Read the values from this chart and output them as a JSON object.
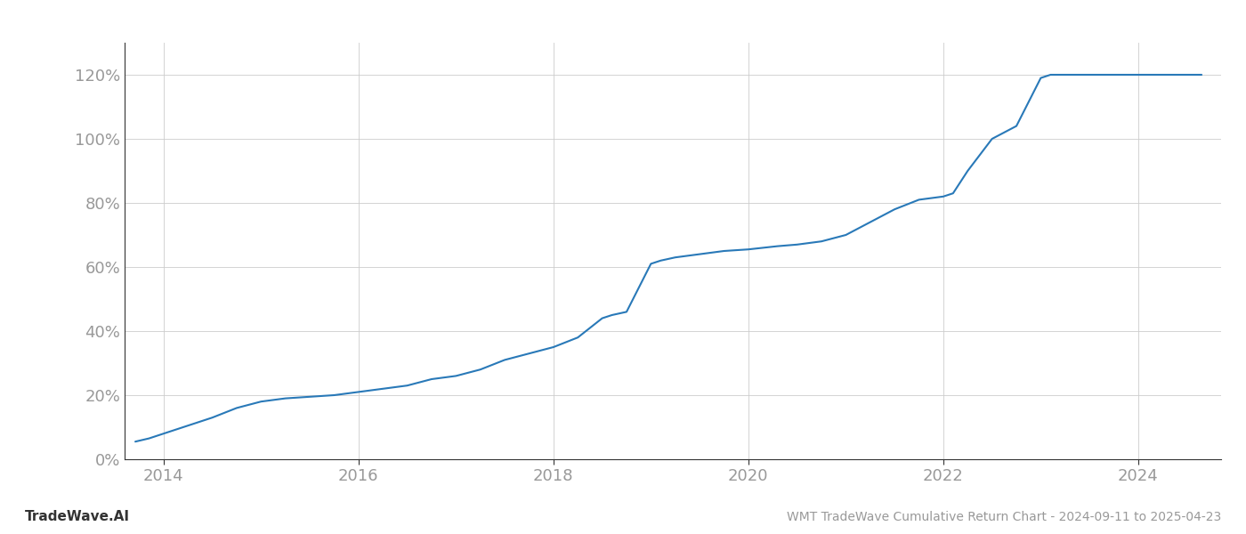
{
  "title": "WMT TradeWave Cumulative Return Chart - 2024-09-11 to 2025-04-23",
  "watermark": "TradeWave.AI",
  "line_color": "#2979b8",
  "background_color": "#ffffff",
  "grid_color": "#cccccc",
  "x_data": [
    2013.71,
    2013.85,
    2014.0,
    2014.2,
    2014.5,
    2014.75,
    2015.0,
    2015.25,
    2015.5,
    2015.75,
    2016.0,
    2016.25,
    2016.5,
    2016.75,
    2017.0,
    2017.25,
    2017.5,
    2017.75,
    2018.0,
    2018.25,
    2018.5,
    2018.6,
    2018.75,
    2019.0,
    2019.1,
    2019.25,
    2019.5,
    2019.75,
    2020.0,
    2020.15,
    2020.3,
    2020.5,
    2020.75,
    2021.0,
    2021.25,
    2021.5,
    2021.75,
    2022.0,
    2022.1,
    2022.25,
    2022.5,
    2022.75,
    2023.0,
    2023.1,
    2023.25,
    2023.4,
    2024.0,
    2024.3,
    2024.65
  ],
  "y_data": [
    5.5,
    6.5,
    8,
    10,
    13,
    16,
    18,
    19,
    19.5,
    20,
    21,
    22,
    23,
    25,
    26,
    28,
    31,
    33,
    35,
    38,
    44,
    45,
    46,
    61,
    62,
    63,
    64,
    65,
    65.5,
    66,
    66.5,
    67,
    68,
    70,
    74,
    78,
    81,
    82,
    83,
    90,
    100,
    104,
    119,
    120,
    120,
    120,
    120,
    120,
    120
  ],
  "yticks": [
    0,
    20,
    40,
    60,
    80,
    100,
    120
  ],
  "xticks": [
    2014,
    2016,
    2018,
    2020,
    2022,
    2024
  ],
  "xlim": [
    2013.6,
    2024.85
  ],
  "ylim": [
    0,
    130
  ],
  "figsize": [
    14.0,
    6.0
  ],
  "dpi": 100,
  "line_width": 1.5,
  "tick_label_color": "#999999",
  "tick_label_fontsize": 13,
  "title_color": "#999999",
  "title_fontsize": 10,
  "watermark_color": "#333333",
  "watermark_fontsize": 11,
  "spine_color": "#333333"
}
